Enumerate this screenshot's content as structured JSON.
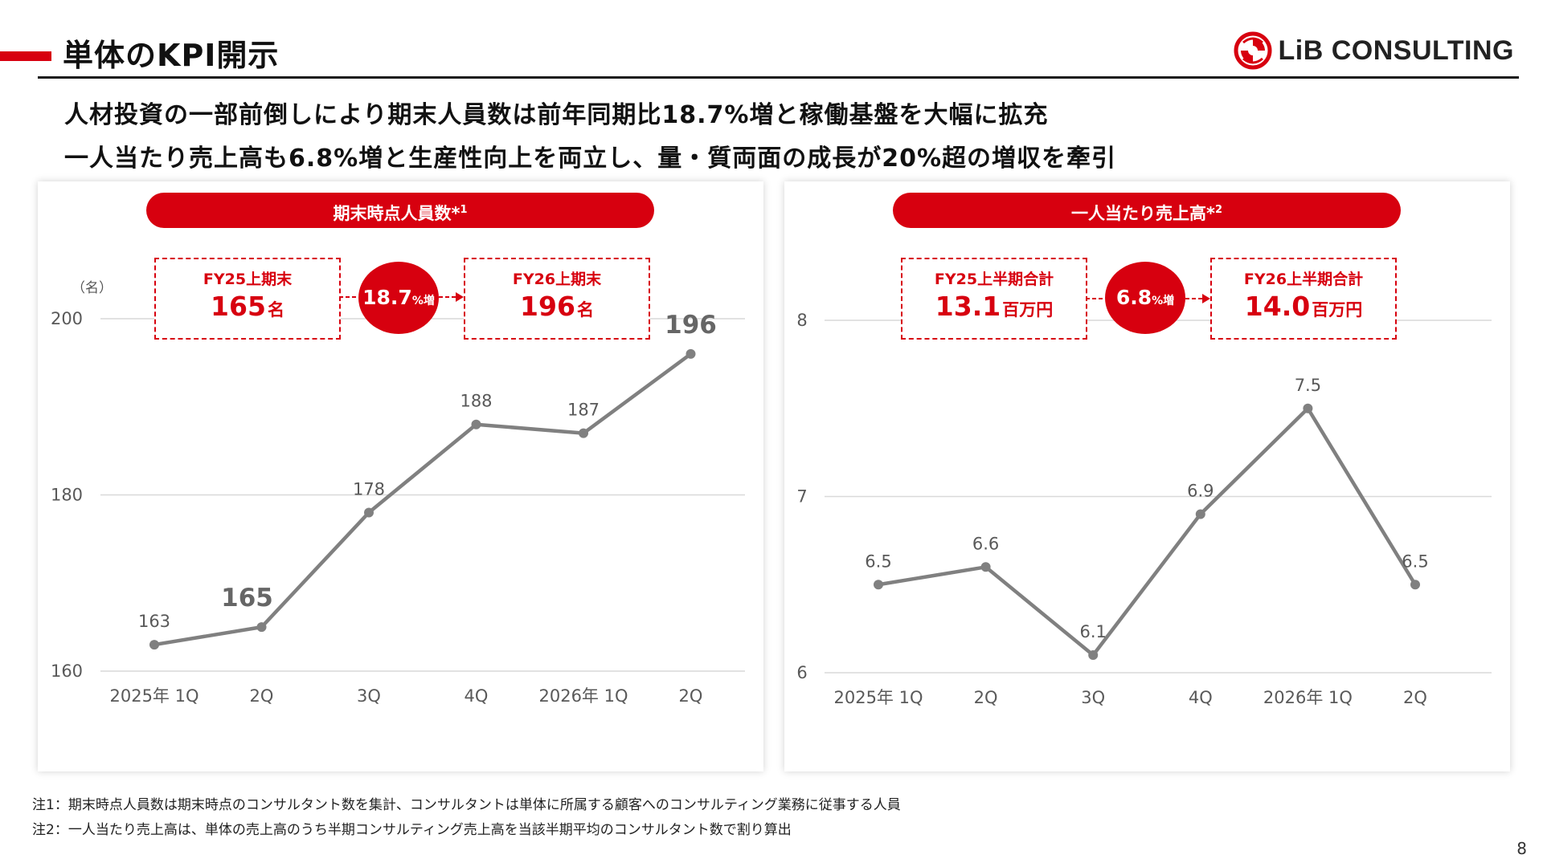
{
  "header": {
    "title": "単体のKPI開示",
    "brand": "LiB CONSULTING",
    "brand_color": "#d7000f"
  },
  "headline": [
    "人材投資の一部前倒しにより期末人員数は前年同期比18.7%増と稼働基盤を大幅に拡充",
    "一人当たり売上高も6.8%増と生産性向上を両立し、量・質両面の成長が20%超の増収を牽引"
  ],
  "left": {
    "pill": "期末時点人員数*",
    "pill_sup": "1",
    "unit": "（名）",
    "kpi_from_label": "FY25上期末",
    "kpi_from_value": "165",
    "kpi_from_unit": "名",
    "growth": "18.7",
    "growth_unit": "%増",
    "kpi_to_label": "FY26上期末",
    "kpi_to_value": "196",
    "kpi_to_unit": "名"
  },
  "right": {
    "pill": "一人当たり売上高*",
    "pill_sup": "2",
    "kpi_from_label": "FY25上半期合計",
    "kpi_from_value": "13.1",
    "kpi_from_unit": "百万円",
    "growth": "6.8",
    "growth_unit": "%増",
    "kpi_to_label": "FY26上半期合計",
    "kpi_to_value": "14.0",
    "kpi_to_unit": "百万円"
  },
  "chart_data": [
    {
      "type": "line",
      "title": "期末時点人員数*1",
      "ylabel": "（名）",
      "categories": [
        "2025年 1Q",
        "2Q",
        "3Q",
        "4Q",
        "2026年 1Q",
        "2Q"
      ],
      "values": [
        163,
        165,
        178,
        188,
        187,
        196
      ],
      "data_labels": [
        "163",
        "165",
        "178",
        "188",
        "187",
        "196"
      ],
      "emphasized_labels": [
        1,
        5
      ],
      "ylim": [
        160,
        200
      ],
      "yticks": [
        160,
        180,
        200
      ],
      "ytick_labels": [
        "160",
        "180",
        "200"
      ],
      "grid": true,
      "line_color": "#808080"
    },
    {
      "type": "line",
      "title": "一人当たり売上高*2",
      "categories": [
        "2025年 1Q",
        "2Q",
        "3Q",
        "4Q",
        "2026年 1Q",
        "2Q"
      ],
      "values": [
        6.5,
        6.6,
        6.1,
        6.9,
        7.5,
        6.5
      ],
      "data_labels": [
        "6.5",
        "6.6",
        "6.1",
        "6.9",
        "7.5",
        "6.5"
      ],
      "emphasized_labels": [],
      "ylim": [
        6,
        8
      ],
      "yticks": [
        6,
        7,
        8
      ],
      "ytick_labels": [
        "6",
        "7",
        "8"
      ],
      "grid": true,
      "line_color": "#808080"
    }
  ],
  "notes": [
    "注1：期末時点人員数は期末時点のコンサルタント数を集計、コンサルタントは単体に所属する顧客へのコンサルティング業務に従事する人員",
    "注2：一人当たり売上高は、単体の売上高のうち半期コンサルティング売上高を当該半期平均のコンサルタント数で割り算出"
  ],
  "page_number": "8"
}
